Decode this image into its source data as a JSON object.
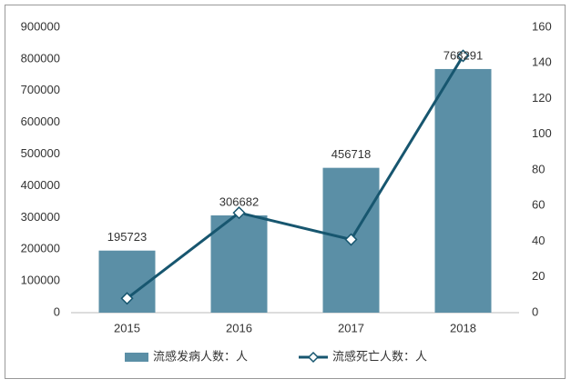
{
  "chart_data": {
    "type": "bar-line",
    "categories": [
      "2015",
      "2016",
      "2017",
      "2018"
    ],
    "series": [
      {
        "name": "流感发病人数：人",
        "type": "bar",
        "color": "#5b8fa6",
        "values": [
          195723,
          306682,
          456718,
          768291
        ]
      },
      {
        "name": "流感死亡人数：人",
        "type": "line",
        "color": "#17566f",
        "axis": "y2",
        "values": [
          8,
          56,
          41,
          144
        ]
      }
    ],
    "ylim": [
      0,
      900000
    ],
    "yticks": [
      0,
      100000,
      200000,
      300000,
      400000,
      500000,
      600000,
      700000,
      800000,
      900000
    ],
    "y2lim": [
      0,
      160
    ],
    "y2ticks": [
      0,
      20,
      40,
      60,
      80,
      100,
      120,
      140,
      160
    ],
    "grid": false,
    "legend": "bottom"
  }
}
